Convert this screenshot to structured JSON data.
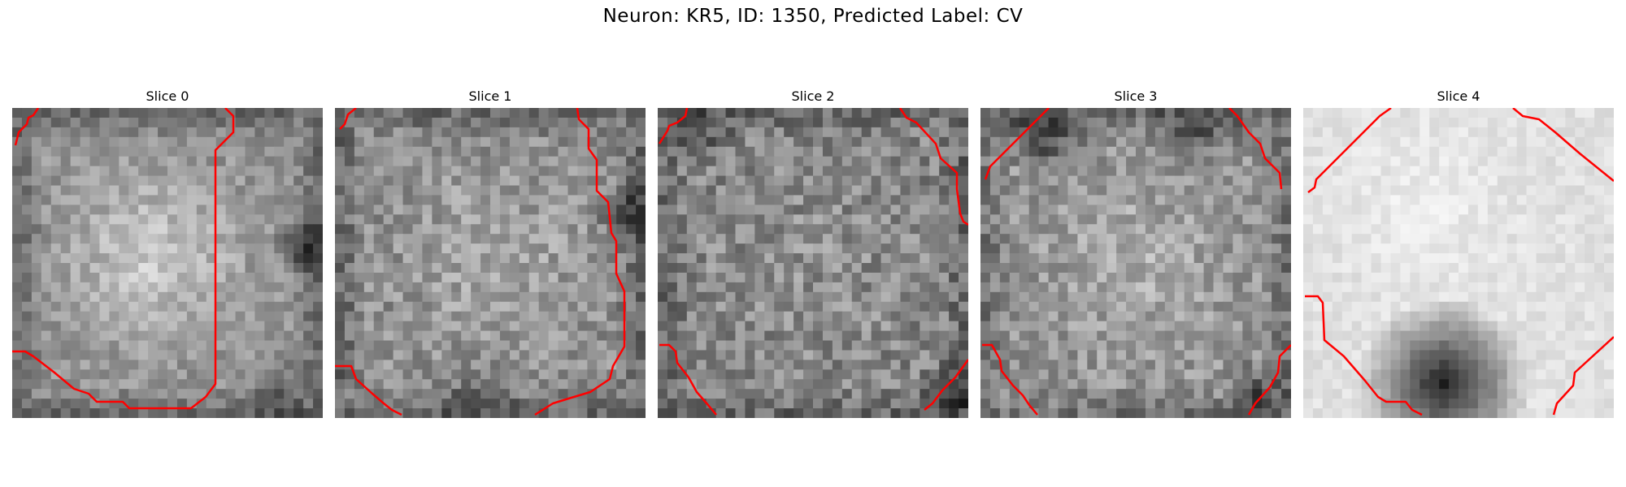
{
  "figure": {
    "title": "Neuron: KR5, ID: 1350, Predicted Label: CV"
  },
  "panels": [
    {
      "title": "Slice 0",
      "contour_color": "#ff0000"
    },
    {
      "title": "Slice 1",
      "contour_color": "#ff0000"
    },
    {
      "title": "Slice 2",
      "contour_color": "#ff0000"
    },
    {
      "title": "Slice 3",
      "contour_color": "#ff0000"
    },
    {
      "title": "Slice 4",
      "contour_color": "#ff0000"
    }
  ]
}
